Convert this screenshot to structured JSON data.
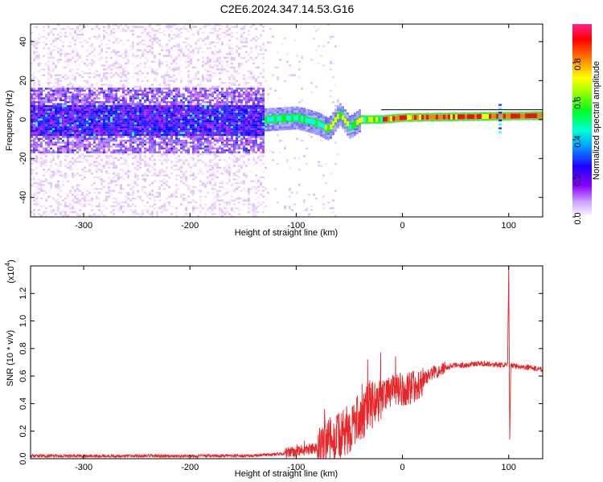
{
  "title": "C2E6.2024.347.14.53.G16",
  "chart_data": [
    {
      "type": "heatmap",
      "xlabel": "Height of straight line (km)",
      "ylabel": "Frequency (Hz)",
      "xlim": [
        -350,
        132
      ],
      "ylim": [
        -50,
        49
      ],
      "xticks": [
        -300,
        -200,
        -100,
        0,
        100
      ],
      "yticks": [
        -40,
        -20,
        0,
        20,
        40
      ],
      "colorbar": {
        "label": "Normalized spectral amplitude",
        "range": [
          0,
          1
        ],
        "ticks": [
          "0.0",
          "0.2",
          "0.4",
          "0.6",
          "0.8"
        ],
        "colormap": [
          "#ffffff",
          "#8f00ff",
          "#0000ff",
          "#00ffff",
          "#00ff00",
          "#ffff00",
          "#ff8000",
          "#ff0000",
          "#ff2090"
        ]
      },
      "band": {
        "center_hz": [
          {
            "x": -350,
            "y": 0
          },
          {
            "x": -130,
            "y": 0
          },
          {
            "x": -100,
            "y": 1
          },
          {
            "x": -80,
            "y": -2
          },
          {
            "x": -70,
            "y": -5
          },
          {
            "x": -60,
            "y": 3
          },
          {
            "x": -50,
            "y": -4
          },
          {
            "x": -40,
            "y": 0
          },
          {
            "x": -20,
            "y": 0
          },
          {
            "x": 0,
            "y": 1
          },
          {
            "x": 132,
            "y": 2
          }
        ],
        "notes": "Noisy wideband (purple) energy for x < -130 km; narrow high-amplitude band near 0-2 Hz for x > -130 km"
      }
    },
    {
      "type": "line",
      "xlabel": "Height of straight line (km)",
      "ylabel": "SNR (10 * v/v)",
      "scale_label": "(x10",
      "scale_exp": "4",
      "xlim": [
        -350,
        132
      ],
      "ylim": [
        0,
        1.4
      ],
      "xticks": [
        -300,
        -200,
        -100,
        0,
        100
      ],
      "yticks": [
        "0.0",
        "0.2",
        "0.4",
        "0.6",
        "0.8",
        "1.0",
        "1.2"
      ],
      "series": [
        {
          "color": "#e8262a",
          "values": [
            {
              "x": -350,
              "y": 0.02
            },
            {
              "x": -300,
              "y": 0.02
            },
            {
              "x": -250,
              "y": 0.02
            },
            {
              "x": -200,
              "y": 0.02
            },
            {
              "x": -150,
              "y": 0.02
            },
            {
              "x": -120,
              "y": 0.03
            },
            {
              "x": -100,
              "y": 0.05
            },
            {
              "x": -80,
              "y": 0.08
            },
            {
              "x": -60,
              "y": 0.15
            },
            {
              "x": -50,
              "y": 0.22
            },
            {
              "x": -40,
              "y": 0.3
            },
            {
              "x": -30,
              "y": 0.38
            },
            {
              "x": -20,
              "y": 0.45
            },
            {
              "x": -10,
              "y": 0.48
            },
            {
              "x": 0,
              "y": 0.5
            },
            {
              "x": 10,
              "y": 0.52
            },
            {
              "x": 20,
              "y": 0.58
            },
            {
              "x": 30,
              "y": 0.63
            },
            {
              "x": 40,
              "y": 0.66
            },
            {
              "x": 50,
              "y": 0.68
            },
            {
              "x": 60,
              "y": 0.68
            },
            {
              "x": 70,
              "y": 0.69
            },
            {
              "x": 80,
              "y": 0.69
            },
            {
              "x": 90,
              "y": 0.68
            },
            {
              "x": 99,
              "y": 0.68
            },
            {
              "x": 100,
              "y": 1.4
            },
            {
              "x": 101,
              "y": 0.15
            },
            {
              "x": 102,
              "y": 0.68
            },
            {
              "x": 110,
              "y": 0.67
            },
            {
              "x": 120,
              "y": 0.66
            },
            {
              "x": 132,
              "y": 0.65
            }
          ]
        }
      ]
    }
  ]
}
